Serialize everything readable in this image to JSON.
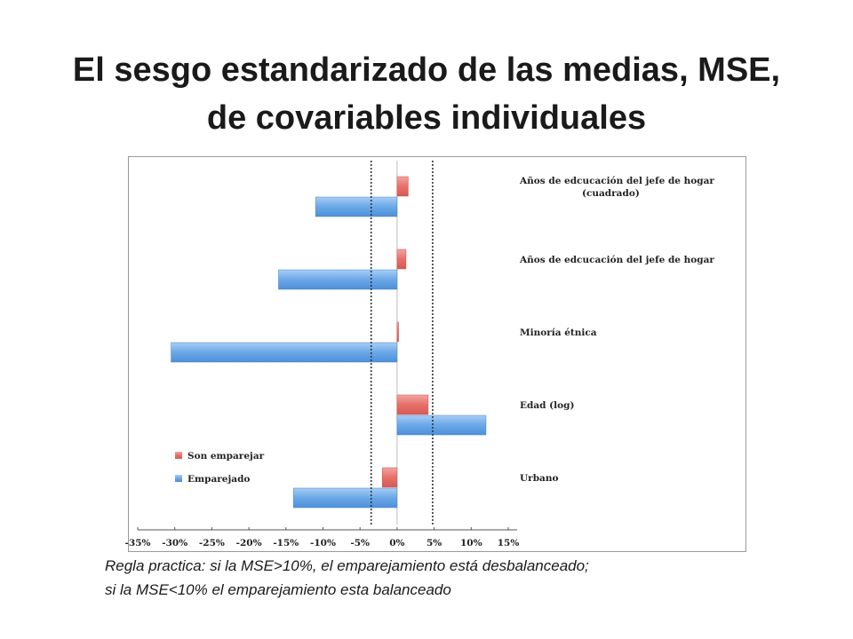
{
  "slide": {
    "title_line1": "El sesgo estandarizado de las medias, MSE,",
    "title_line2": "de covariables individuales",
    "note_line1": "Regla practica: si la MSE>10%, el emparejamiento está desbalanceado;",
    "note_line2": "si la MSE<10%  el emparejamiento esta balanceado"
  },
  "chart_data": {
    "type": "bar",
    "orientation": "horizontal",
    "categories": [
      "Años de edcucación del jefe de hogar (cuadrado)",
      "Años de edcucación del jefe de hogar",
      "Minoría étnica",
      "Edad (log)",
      "Urbano"
    ],
    "category_lines": [
      [
        "Años de edcucación del jefe de hogar",
        "(cuadrado)"
      ],
      [
        "Años de edcucación del jefe de hogar"
      ],
      [
        "Minoría étnica"
      ],
      [
        "Edad (log)"
      ],
      [
        "Urbano"
      ]
    ],
    "series": [
      {
        "name": "Son emparejar",
        "color": "#e57373",
        "values": [
          1.5,
          1.2,
          0.2,
          4.2,
          -2.0
        ]
      },
      {
        "name": "Emparejado",
        "color": "#6aa8e8",
        "values": [
          -11.0,
          -16.0,
          -30.5,
          12.0,
          -14.0
        ]
      }
    ],
    "xlim": [
      -35,
      15
    ],
    "xticks": [
      -35,
      -30,
      -25,
      -20,
      -15,
      -10,
      -5,
      0,
      5,
      10,
      15
    ],
    "xtick_labels": [
      "-35%",
      "-30%",
      "-25%",
      "-20%",
      "-15%",
      "-10%",
      "-5%",
      "0%",
      "5%",
      "10%",
      "15%"
    ],
    "reference_lines": [
      -3.5,
      4.8
    ],
    "legend_position": "bottom-left",
    "grid": false
  }
}
